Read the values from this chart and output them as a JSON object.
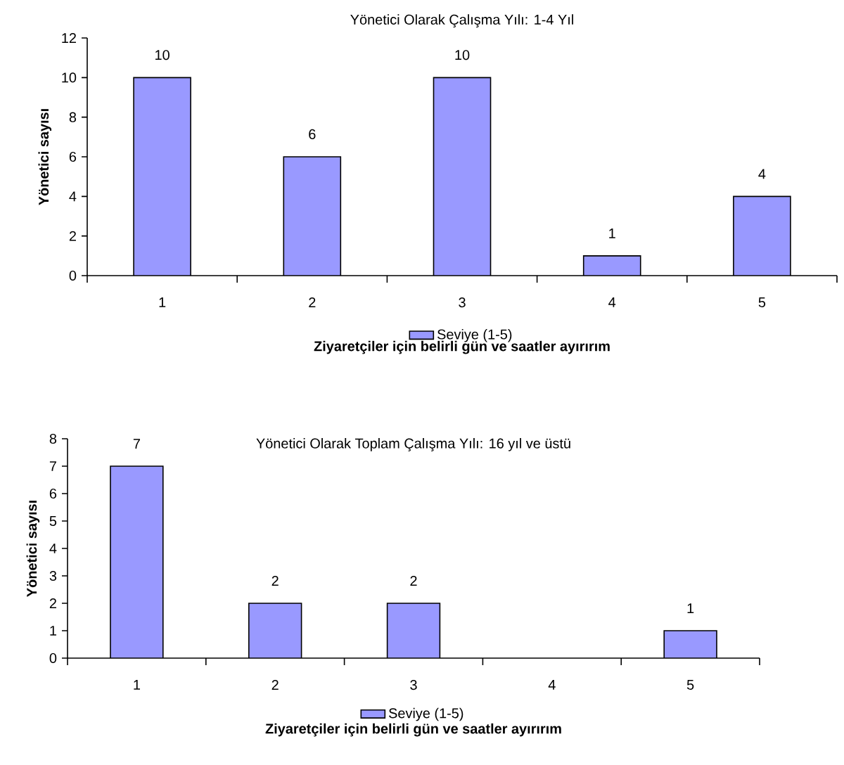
{
  "chart_data": [
    {
      "type": "bar",
      "title": "Yönetici Olarak Çalışma Yılı: 1-4 Yıl",
      "xlabel": "Ziyaretçiler için belirli gün ve saatler ayırırım",
      "ylabel": "Yönetici sayısı",
      "categories": [
        "1",
        "2",
        "3",
        "4",
        "5"
      ],
      "series": [
        {
          "name": "Seviye (1-5)",
          "color": "#9999ff",
          "values": [
            10,
            6,
            10,
            1,
            4
          ],
          "value_labels": [
            "10",
            "6",
            "10",
            "1",
            "4"
          ]
        }
      ],
      "ylim": [
        0,
        12
      ],
      "yticks": [
        0,
        2,
        4,
        6,
        8,
        10,
        12
      ],
      "legend": "bottom",
      "grid": false
    },
    {
      "type": "bar",
      "title": "Yönetici Olarak Toplam Çalışma Yılı: 16 yıl ve üstü",
      "xlabel": "Ziyaretçiler için belirli gün ve saatler ayırırım",
      "ylabel": "Yönetici sayısı",
      "categories": [
        "1",
        "2",
        "3",
        "4",
        "5"
      ],
      "series": [
        {
          "name": "Seviye (1-5)",
          "color": "#9999ff",
          "values": [
            7,
            2,
            2,
            null,
            1
          ],
          "value_labels": [
            "7",
            "2",
            "2",
            null,
            "1"
          ]
        }
      ],
      "ylim": [
        0,
        8
      ],
      "yticks": [
        0,
        1,
        2,
        3,
        4,
        5,
        6,
        7,
        8
      ],
      "legend": "bottom",
      "grid": false
    }
  ]
}
